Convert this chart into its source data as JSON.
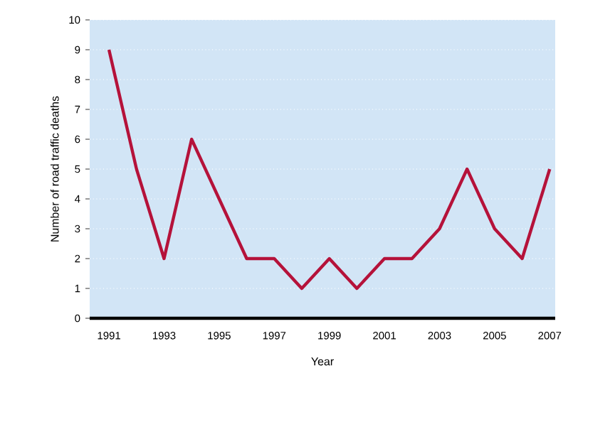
{
  "chart_data": {
    "type": "line",
    "xlabel": "Year",
    "ylabel": "Number of road traffic deaths",
    "x": [
      1991,
      1992,
      1993,
      1994,
      1995,
      1996,
      1997,
      1998,
      1999,
      2000,
      2001,
      2002,
      2003,
      2004,
      2005,
      2006,
      2007
    ],
    "series": [
      {
        "color": "#b5123a",
        "values": [
          9,
          5,
          2,
          6,
          4,
          2,
          2,
          1,
          2,
          1,
          2,
          2,
          3,
          5,
          3,
          2,
          5
        ]
      }
    ],
    "xlim": [
      1990.3,
      2007.2
    ],
    "ylim": [
      0,
      10
    ],
    "xticks": [
      1991,
      1993,
      1995,
      1997,
      1999,
      2001,
      2003,
      2005,
      2007
    ],
    "yticks": [
      0,
      1,
      2,
      3,
      4,
      5,
      6,
      7,
      8,
      9,
      10
    ],
    "grid": "y",
    "marker": "none",
    "line_style": "solid"
  }
}
